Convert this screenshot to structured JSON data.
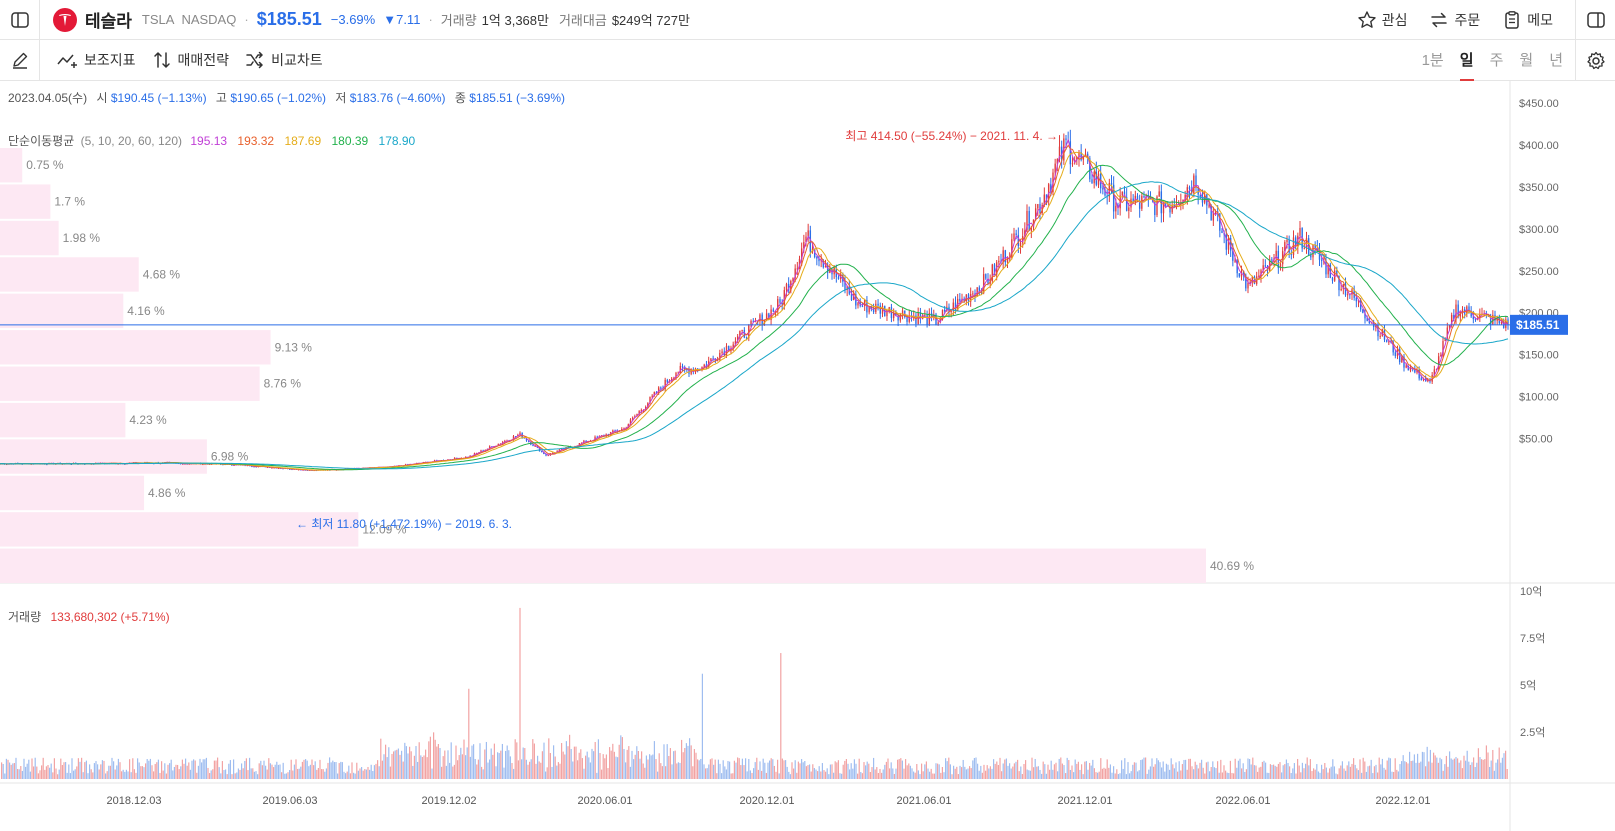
{
  "header": {
    "name": "테슬라",
    "ticker": "TSLA",
    "exchange": "NASDAQ",
    "dot": "·",
    "price": "$185.51",
    "change_pct": "−3.69%",
    "change_abs": "▼7.11",
    "volume_label": "거래량",
    "volume_value": "1억 3,368만",
    "turnover_label": "거래대금",
    "turnover_value": "$249억 727만",
    "buttons": {
      "watch": "관심",
      "order": "주문",
      "memo": "메모"
    }
  },
  "toolbar": {
    "indicators": "보조지표",
    "strategy": "매매전략",
    "compare": "비교차트",
    "periods": [
      {
        "label": "1분",
        "active": false
      },
      {
        "label": "일",
        "active": true
      },
      {
        "label": "주",
        "active": false
      },
      {
        "label": "월",
        "active": false
      },
      {
        "label": "년",
        "active": false
      }
    ]
  },
  "ohlc": {
    "date": "2023.04.05(수)",
    "open_label": "시",
    "open": "$190.45 (−1.13%)",
    "high_label": "고",
    "high": "$190.65 (−1.02%)",
    "low_label": "저",
    "low": "$183.76 (−4.60%)",
    "close_label": "종",
    "close": "$185.51 (−3.69%)"
  },
  "ma_legend": {
    "label": "단순이동평균",
    "params": "(5, 10, 20, 60, 120)",
    "values": [
      "195.13",
      "193.32",
      "187.69",
      "180.39",
      "178.90"
    ],
    "colors": [
      "#c03ed6",
      "#e8602c",
      "#e5ad1a",
      "#22b14c",
      "#1aa7c9"
    ]
  },
  "volume_legend": {
    "label": "거래량",
    "value": "133,680,302 (+5.71%)"
  },
  "annotations": {
    "high": "최고 414.50 (−55.24%) − 2021. 11. 4. →",
    "low": "← 최저 11.80 (+1,472.19%) − 2019. 6. 3.",
    "current_price_tag": "$185.51"
  },
  "price_axis": [
    "$450.00",
    "$400.00",
    "$350.00",
    "$300.00",
    "$250.00",
    "$200.00",
    "$150.00",
    "$100.00",
    "$50.00"
  ],
  "volume_axis": [
    "10억",
    "7.5억",
    "5억",
    "2.5억"
  ],
  "date_axis": [
    "2018.12.03",
    "2019.06.03",
    "2019.12.02",
    "2020.06.01",
    "2020.12.01",
    "2021.06.01",
    "2021.12.01",
    "2022.06.01",
    "2022.12.01"
  ],
  "colors": {
    "up": "#e03c3c",
    "down": "#2a6ee8",
    "profile": "#fde8f3",
    "brand": "#e31937"
  },
  "chart_data": {
    "type": "line",
    "title": "",
    "ylabel": "",
    "ylim": [
      0,
      460
    ],
    "dates": [
      "2018.06",
      "2018.09",
      "2018.12",
      "2019.03",
      "2019.06",
      "2019.09",
      "2019.12",
      "2020.02",
      "2020.03",
      "2020.06",
      "2020.08",
      "2020.09",
      "2020.12",
      "2021.01",
      "2021.03",
      "2021.06",
      "2021.08",
      "2021.10",
      "2021.11",
      "2022.01",
      "2022.03",
      "2022.04",
      "2022.06",
      "2022.08",
      "2022.10",
      "2022.12",
      "2023.01",
      "2023.02",
      "2023.04"
    ],
    "series": [
      {
        "values": [
          20,
          20,
          21,
          19,
          12,
          16,
          28,
          55,
          30,
          62,
          130,
          135,
          210,
          290,
          210,
          190,
          240,
          330,
          400,
          330,
          330,
          360,
          230,
          290,
          220,
          140,
          115,
          205,
          185.51
        ]
      }
    ],
    "volume_profile": [
      {
        "label": "0.75 %",
        "value": 0.75
      },
      {
        "label": "1.7 %",
        "value": 1.7
      },
      {
        "label": "1.98 %",
        "value": 1.98
      },
      {
        "label": "4.68 %",
        "value": 4.68
      },
      {
        "label": "4.16 %",
        "value": 4.16
      },
      {
        "label": "9.13 %",
        "value": 9.13
      },
      {
        "label": "8.76 %",
        "value": 8.76
      },
      {
        "label": "4.23 %",
        "value": 4.23
      },
      {
        "label": "6.98 %",
        "value": 6.98
      },
      {
        "label": "4.86 %",
        "value": 4.86
      },
      {
        "label": "12.09 %",
        "value": 12.09
      },
      {
        "label": "40.69 %",
        "value": 40.69
      }
    ],
    "high": 414.5,
    "low": 11.8,
    "last": 185.51,
    "volume_ylim_eok": [
      0,
      10
    ],
    "volume_spikes_eok": [
      {
        "date": "2020.02",
        "value": 9.1
      },
      {
        "date": "2020.12",
        "value": 6.7
      },
      {
        "date": "2019.12",
        "value": 4.8
      },
      {
        "date": "2020.09",
        "value": 5.6
      }
    ]
  }
}
